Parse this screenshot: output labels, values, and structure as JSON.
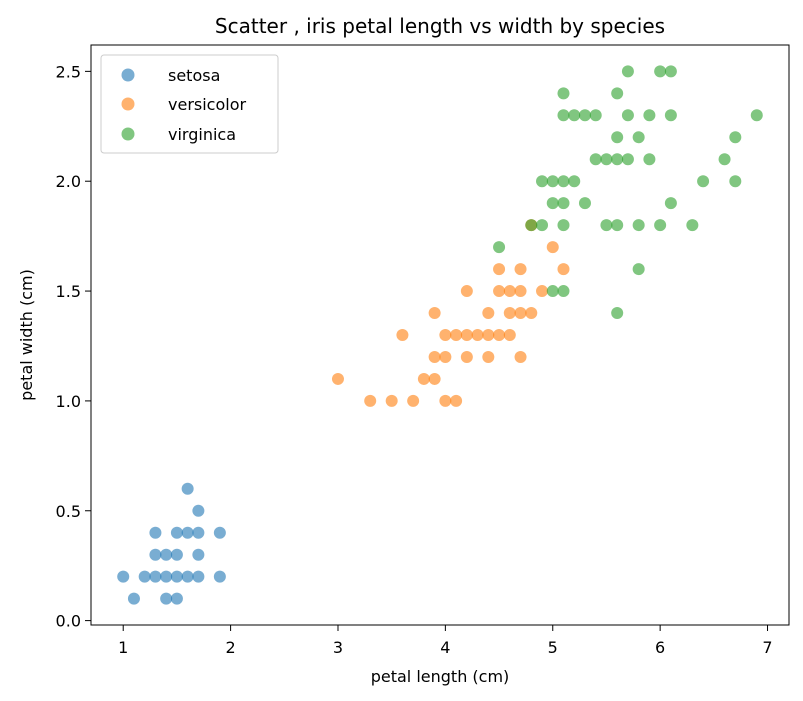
{
  "chart_data": {
    "type": "scatter",
    "title": "Scatter , iris petal length vs width by species",
    "xlabel": "petal length (cm)",
    "ylabel": "petal width (cm)",
    "xlim": [
      0.7,
      7.2
    ],
    "ylim": [
      -0.02,
      2.62
    ],
    "xticks": [
      1,
      2,
      3,
      4,
      5,
      6,
      7
    ],
    "xtick_labels": [
      "1",
      "2",
      "3",
      "4",
      "5",
      "6",
      "7"
    ],
    "yticks": [
      0.0,
      0.5,
      1.0,
      1.5,
      2.0,
      2.5
    ],
    "ytick_labels": [
      "0.0",
      "0.5",
      "1.0",
      "1.5",
      "2.0",
      "2.5"
    ],
    "grid": false,
    "legend_position": "top-left",
    "series": [
      {
        "name": "setosa",
        "color": "#1f77b4",
        "points": [
          [
            1.0,
            0.2
          ],
          [
            1.1,
            0.1
          ],
          [
            1.2,
            0.2
          ],
          [
            1.3,
            0.2
          ],
          [
            1.3,
            0.3
          ],
          [
            1.3,
            0.4
          ],
          [
            1.4,
            0.1
          ],
          [
            1.4,
            0.2
          ],
          [
            1.4,
            0.3
          ],
          [
            1.5,
            0.1
          ],
          [
            1.5,
            0.2
          ],
          [
            1.5,
            0.3
          ],
          [
            1.5,
            0.4
          ],
          [
            1.6,
            0.2
          ],
          [
            1.6,
            0.4
          ],
          [
            1.6,
            0.6
          ],
          [
            1.7,
            0.2
          ],
          [
            1.7,
            0.3
          ],
          [
            1.7,
            0.4
          ],
          [
            1.7,
            0.5
          ],
          [
            1.9,
            0.2
          ],
          [
            1.9,
            0.4
          ]
        ]
      },
      {
        "name": "versicolor",
        "color": "#ff7f0e",
        "points": [
          [
            3.0,
            1.1
          ],
          [
            3.3,
            1.0
          ],
          [
            3.5,
            1.0
          ],
          [
            3.6,
            1.3
          ],
          [
            3.7,
            1.0
          ],
          [
            3.8,
            1.1
          ],
          [
            3.9,
            1.1
          ],
          [
            3.9,
            1.2
          ],
          [
            3.9,
            1.4
          ],
          [
            4.0,
            1.0
          ],
          [
            4.0,
            1.2
          ],
          [
            4.0,
            1.3
          ],
          [
            4.1,
            1.0
          ],
          [
            4.1,
            1.3
          ],
          [
            4.2,
            1.2
          ],
          [
            4.2,
            1.3
          ],
          [
            4.2,
            1.5
          ],
          [
            4.3,
            1.3
          ],
          [
            4.4,
            1.2
          ],
          [
            4.4,
            1.3
          ],
          [
            4.4,
            1.4
          ],
          [
            4.5,
            1.3
          ],
          [
            4.5,
            1.5
          ],
          [
            4.5,
            1.6
          ],
          [
            4.6,
            1.3
          ],
          [
            4.6,
            1.4
          ],
          [
            4.6,
            1.5
          ],
          [
            4.7,
            1.2
          ],
          [
            4.7,
            1.4
          ],
          [
            4.7,
            1.5
          ],
          [
            4.7,
            1.6
          ],
          [
            4.8,
            1.4
          ],
          [
            4.8,
            1.8
          ],
          [
            4.9,
            1.5
          ],
          [
            5.0,
            1.7
          ],
          [
            5.1,
            1.6
          ]
        ]
      },
      {
        "name": "virginica",
        "color": "#2ca02c",
        "points": [
          [
            4.5,
            1.7
          ],
          [
            4.8,
            1.8
          ],
          [
            4.9,
            1.8
          ],
          [
            4.9,
            2.0
          ],
          [
            5.0,
            1.5
          ],
          [
            5.0,
            1.9
          ],
          [
            5.0,
            2.0
          ],
          [
            5.1,
            1.5
          ],
          [
            5.1,
            1.8
          ],
          [
            5.1,
            1.9
          ],
          [
            5.1,
            2.0
          ],
          [
            5.1,
            2.3
          ],
          [
            5.1,
            2.4
          ],
          [
            5.2,
            2.0
          ],
          [
            5.2,
            2.3
          ],
          [
            5.3,
            1.9
          ],
          [
            5.3,
            2.3
          ],
          [
            5.4,
            2.1
          ],
          [
            5.4,
            2.3
          ],
          [
            5.5,
            1.8
          ],
          [
            5.5,
            2.1
          ],
          [
            5.6,
            1.4
          ],
          [
            5.6,
            1.8
          ],
          [
            5.6,
            2.1
          ],
          [
            5.6,
            2.2
          ],
          [
            5.6,
            2.4
          ],
          [
            5.7,
            2.1
          ],
          [
            5.7,
            2.3
          ],
          [
            5.7,
            2.5
          ],
          [
            5.8,
            1.6
          ],
          [
            5.8,
            1.8
          ],
          [
            5.8,
            2.2
          ],
          [
            5.9,
            2.1
          ],
          [
            5.9,
            2.3
          ],
          [
            6.0,
            1.8
          ],
          [
            6.0,
            2.5
          ],
          [
            6.1,
            1.9
          ],
          [
            6.1,
            2.3
          ],
          [
            6.1,
            2.5
          ],
          [
            6.3,
            1.8
          ],
          [
            6.4,
            2.0
          ],
          [
            6.6,
            2.1
          ],
          [
            6.7,
            2.0
          ],
          [
            6.7,
            2.2
          ],
          [
            6.9,
            2.3
          ]
        ]
      }
    ]
  }
}
